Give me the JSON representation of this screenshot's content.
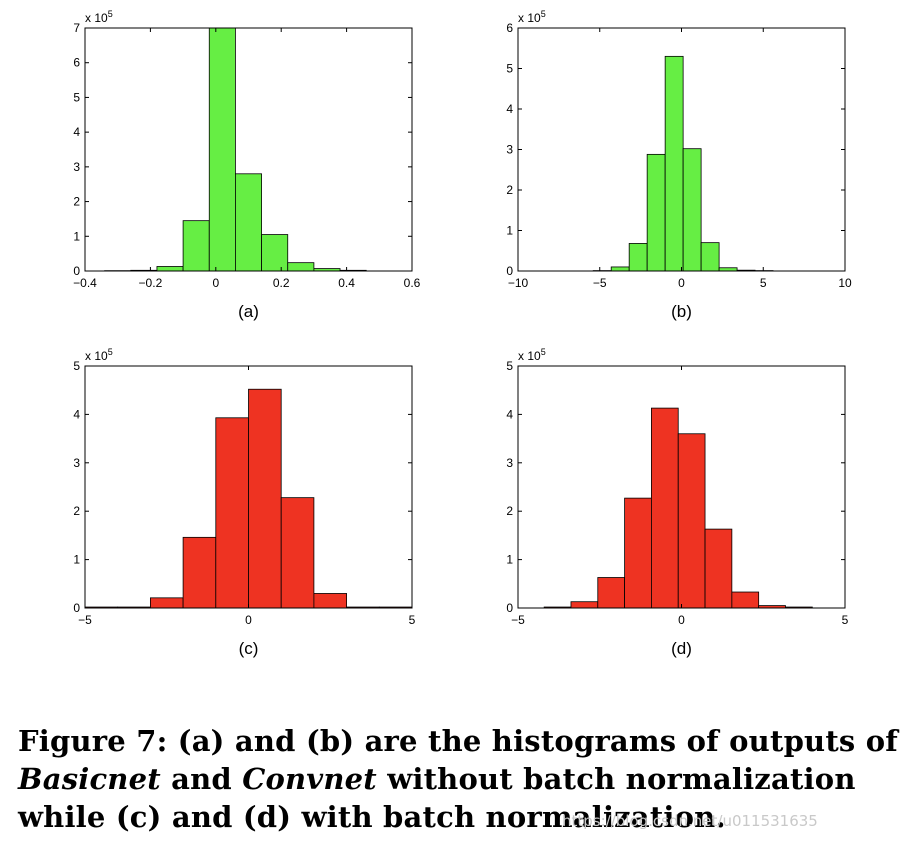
{
  "chart_data": [
    {
      "type": "bar",
      "panel_label": "(a)",
      "multiplier": "x 10",
      "multiplier_exp": "5",
      "color": "#66ee44",
      "xlim": [
        -0.4,
        0.6
      ],
      "ylim": [
        0,
        7
      ],
      "xticks": [
        "−0.4",
        "−0.2",
        "0",
        "0.2",
        "0.4",
        "0.6"
      ],
      "yticks": [
        "0",
        "1",
        "2",
        "3",
        "4",
        "5",
        "6",
        "7"
      ],
      "bin_edges": [
        -0.34,
        -0.26,
        -0.18,
        -0.1,
        -0.02,
        0.06,
        0.14,
        0.22,
        0.3,
        0.38,
        0.46
      ],
      "values": [
        0.01,
        0.02,
        0.13,
        1.45,
        7.2,
        2.8,
        1.05,
        0.24,
        0.07,
        0.02
      ]
    },
    {
      "type": "bar",
      "panel_label": "(b)",
      "multiplier": "x 10",
      "multiplier_exp": "5",
      "color": "#66ee44",
      "xlim": [
        -10,
        10
      ],
      "ylim": [
        0,
        6
      ],
      "xticks": [
        "−10",
        "−5",
        "0",
        "5",
        "10"
      ],
      "yticks": [
        "0",
        "1",
        "2",
        "3",
        "4",
        "5",
        "6"
      ],
      "bin_edges": [
        -5.4,
        -4.3,
        -3.2,
        -2.1,
        -1.0,
        0.1,
        1.2,
        2.3,
        3.4,
        4.5,
        5.6
      ],
      "values": [
        0.01,
        0.1,
        0.68,
        2.88,
        5.3,
        3.02,
        0.7,
        0.08,
        0.02,
        0.01
      ]
    },
    {
      "type": "bar",
      "panel_label": "(c)",
      "multiplier": "x 10",
      "multiplier_exp": "5",
      "color": "#ee3322",
      "xlim": [
        -5,
        5
      ],
      "ylim": [
        0,
        5
      ],
      "xticks": [
        "−5",
        "0",
        "5"
      ],
      "yticks": [
        "0",
        "1",
        "2",
        "3",
        "4",
        "5"
      ],
      "bin_edges": [
        -5,
        -4,
        -3,
        -2,
        -1,
        0,
        1,
        2,
        3,
        4,
        5
      ],
      "values": [
        0.02,
        0.02,
        0.21,
        1.46,
        3.93,
        4.52,
        2.28,
        0.3,
        0.02,
        0.02
      ]
    },
    {
      "type": "bar",
      "panel_label": "(d)",
      "multiplier": "x 10",
      "multiplier_exp": "5",
      "color": "#ee3322",
      "xlim": [
        -5,
        5
      ],
      "ylim": [
        0,
        5
      ],
      "xticks": [
        "−5",
        "0",
        "5"
      ],
      "yticks": [
        "0",
        "1",
        "2",
        "3",
        "4",
        "5"
      ],
      "bin_edges": [
        -4.2,
        -3.38,
        -2.56,
        -1.74,
        -0.92,
        -0.1,
        0.72,
        1.54,
        2.36,
        3.18,
        4.0
      ],
      "values": [
        0.02,
        0.13,
        0.63,
        2.27,
        4.13,
        3.6,
        1.63,
        0.33,
        0.05,
        0.02
      ]
    }
  ],
  "caption": {
    "part1": "Figure 7: (a) and (b) are the histograms of outputs of ",
    "basicnet": "Basicnet",
    "part2": " and ",
    "convnet": "Convnet",
    "part3": " without batch normalization while (c) and (d) with batch normalization."
  },
  "watermark": "https://blog.csdn.net/u011531635"
}
